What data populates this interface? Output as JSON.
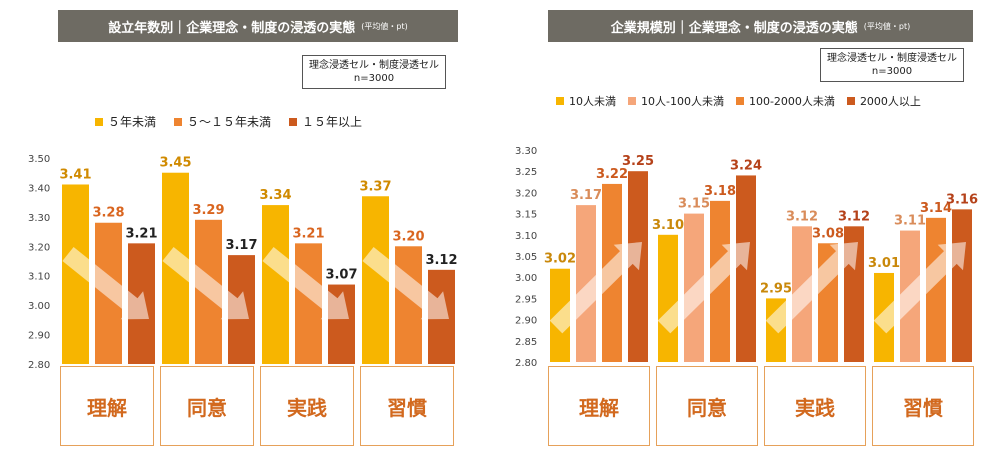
{
  "charts": [
    {
      "title": "設立年数別｜企業理念・制度の浸透の実態",
      "title_note": "(平均値・pt)",
      "sample_label": "理念浸透セル・制度浸透セル",
      "sample_n": "n=3000",
      "colors": [
        "#f7b500",
        "#ee8430",
        "#cc5a1e"
      ]
    },
    {
      "title": "企業規模別｜企業理念・制度の浸透の実態",
      "title_note": "(平均値・pt)",
      "sample_label": "理念浸透セル・制度浸透セル",
      "sample_n": "n=3000",
      "colors": [
        "#f7b500",
        "#f5a67a",
        "#ee8430",
        "#cc5a1e"
      ]
    }
  ],
  "chart_data": [
    {
      "type": "bar",
      "title": "設立年数別｜企業理念・制度の浸透の実態",
      "categories": [
        "理解",
        "同意",
        "実践",
        "習慣"
      ],
      "series": [
        {
          "name": "５年未満",
          "values": [
            3.41,
            3.45,
            3.34,
            3.37
          ]
        },
        {
          "name": "５～１５年未満",
          "values": [
            3.28,
            3.29,
            3.21,
            3.2
          ]
        },
        {
          "name": "１５年以上",
          "values": [
            3.21,
            3.17,
            3.07,
            3.12
          ]
        }
      ],
      "ylim": [
        2.8,
        3.5
      ],
      "yticks": [
        "3.50",
        "3.40",
        "3.30",
        "3.20",
        "3.10",
        "3.00",
        "2.90",
        "2.80"
      ],
      "value_labels": [
        [
          "3.41",
          "3.45",
          "3.34",
          "3.37"
        ],
        [
          "3.28",
          "3.29",
          "3.21",
          "3.20"
        ],
        [
          "3.21",
          "3.17",
          "3.07",
          "3.12"
        ]
      ],
      "trend": "down",
      "legend": "top"
    },
    {
      "type": "bar",
      "title": "企業規模別｜企業理念・制度の浸透の実態",
      "categories": [
        "理解",
        "同意",
        "実践",
        "習慣"
      ],
      "series": [
        {
          "name": "10人未満",
          "values": [
            3.02,
            3.1,
            2.95,
            3.01
          ]
        },
        {
          "name": "10人-100人未満",
          "values": [
            3.17,
            3.15,
            3.12,
            3.11
          ]
        },
        {
          "name": "100-2000人未満",
          "values": [
            3.22,
            3.18,
            3.08,
            3.14
          ]
        },
        {
          "name": "2000人以上",
          "values": [
            3.25,
            3.24,
            3.12,
            3.16
          ]
        }
      ],
      "ylim": [
        2.8,
        3.3
      ],
      "yticks": [
        "3.30",
        "3.25",
        "3.20",
        "3.15",
        "3.10",
        "3.05",
        "3.00",
        "2.95",
        "2.90",
        "2.85",
        "2.80"
      ],
      "value_labels": [
        [
          "3.02",
          "3.10",
          "2.95",
          "3.01"
        ],
        [
          "3.17",
          "3.15",
          "3.12",
          "3.11"
        ],
        [
          "3.22",
          "3.18",
          "3.08",
          "3.14"
        ],
        [
          "3.25",
          "3.24",
          "3.12",
          "3.16"
        ]
      ],
      "trend": "up",
      "legend": "top"
    }
  ]
}
